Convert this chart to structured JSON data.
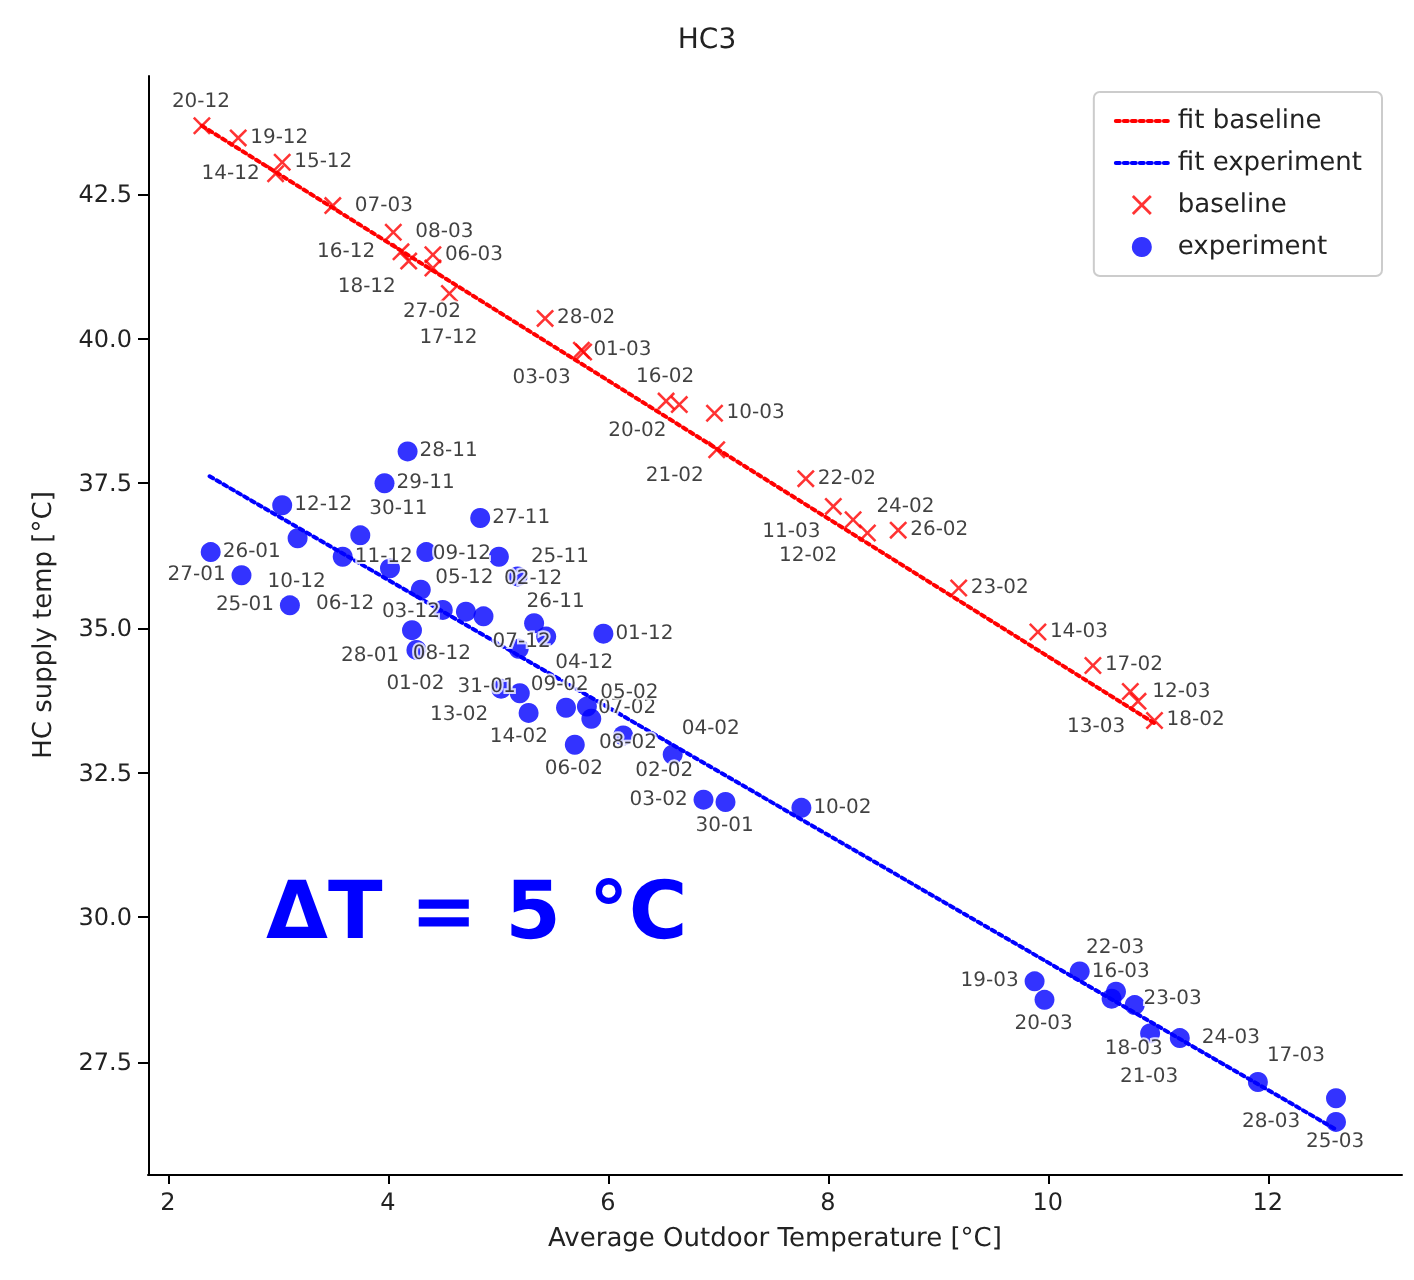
{
  "chart_data": {
    "type": "scatter",
    "title": "HC3",
    "xlabel": "Average Outdoor Temperature [°C]",
    "ylabel": "HC supply temp [°C]",
    "xlim": [
      1.82,
      13.22
    ],
    "ylim": [
      25.56,
      44.54
    ],
    "xticks": [
      2,
      4,
      6,
      8,
      10,
      12
    ],
    "yticks": [
      27.5,
      {
        "value": 30,
        "label": "30.0"
      },
      32.5,
      {
        "value": 35,
        "label": "35.0"
      },
      37.5,
      {
        "value": 40,
        "label": "40.0"
      },
      42.5
    ],
    "grid": false,
    "legend": "top right",
    "annotations": [
      "ΔT = 5 °C"
    ],
    "series": [
      {
        "name": "fit baseline",
        "type": "line",
        "color": "#ff0000",
        "line_style": "dotted",
        "marker": "none",
        "x": [
          2.31,
          10.98
        ],
        "values": [
          43.68,
          33.34
        ]
      },
      {
        "name": "fit experiment",
        "type": "line",
        "color": "#0000ff",
        "line_style": "dotted",
        "marker": "none",
        "x": [
          2.38,
          12.62
        ],
        "values": [
          37.62,
          26.33
        ]
      },
      {
        "name": "baseline",
        "type": "scatter",
        "color": "#ff0000",
        "marker": "cross",
        "x": [
          2.31,
          2.64,
          3.04,
          2.98,
          3.5,
          4.05,
          4.12,
          4.41,
          4.19,
          4.41,
          4.56,
          5.43,
          5.76,
          5.78,
          6.53,
          6.65,
          6.97,
          6.99,
          7.8,
          8.05,
          8.23,
          8.36,
          8.64,
          9.19,
          9.91,
          10.41,
          10.75,
          10.82,
          10.97
        ],
        "values": [
          43.68,
          43.47,
          43.05,
          42.85,
          42.3,
          41.84,
          41.5,
          41.45,
          41.34,
          41.22,
          40.78,
          40.35,
          39.8,
          39.77,
          38.92,
          38.86,
          38.71,
          38.08,
          37.58,
          37.1,
          36.87,
          36.64,
          36.69,
          35.69,
          34.93,
          34.35,
          33.9,
          33.73,
          33.4
        ],
        "value_labels": [
          "20-12",
          "19-12",
          "15-12",
          "14-12",
          "07-03",
          "08-03",
          "16-12",
          "06-03",
          "18-12",
          "27-02",
          "17-12",
          "28-02",
          "01-03",
          "03-03",
          "16-02",
          "20-02",
          "10-03",
          "21-02",
          "22-02",
          "11-03",
          "12-02",
          "24-02",
          "26-02",
          "23-02",
          "14-03",
          "17-02",
          "12-03",
          "13-03",
          "18-02"
        ]
      },
      {
        "name": "experiment",
        "type": "scatter",
        "color": "#0000ff",
        "marker": "circle",
        "x": [
          4.18,
          3.97,
          3.04,
          4.84,
          2.39,
          3.18,
          3.75,
          3.59,
          4.02,
          4.35,
          5.01,
          2.67,
          5.18,
          3.11,
          4.3,
          4.5,
          4.71,
          4.87,
          4.22,
          4.26,
          5.33,
          5.44,
          5.19,
          5.96,
          5.03,
          5.2,
          5.28,
          5.62,
          5.81,
          5.85,
          5.7,
          6.14,
          6.59,
          6.87,
          7.07,
          7.76,
          9.88,
          9.97,
          10.29,
          10.62,
          10.58,
          10.79,
          10.93,
          11.2,
          11.91,
          12.62,
          12.62
        ],
        "values": [
          38.05,
          37.5,
          37.12,
          36.9,
          36.31,
          36.55,
          36.6,
          36.23,
          36.03,
          36.31,
          36.23,
          35.91,
          35.89,
          35.39,
          35.66,
          35.31,
          35.28,
          35.2,
          34.96,
          34.62,
          35.08,
          34.85,
          34.64,
          34.9,
          33.95,
          33.87,
          33.53,
          33.62,
          33.64,
          33.43,
          32.98,
          33.14,
          32.81,
          32.03,
          31.99,
          31.89,
          28.89,
          28.57,
          29.06,
          28.71,
          28.59,
          28.48,
          27.99,
          27.91,
          27.15,
          26.87,
          26.46
        ],
        "value_labels": [
          "28-11",
          "29-11",
          "12-12",
          "27-11",
          "26-01",
          "10-12",
          "30-11",
          "11-12",
          "06-12",
          "05-12",
          "25-11",
          "27-01",
          "26-11",
          "25-01",
          "09-12",
          "08-12",
          "03-12",
          "07-12",
          "28-01",
          "01-02",
          "02-12",
          "04-12",
          "09-02",
          "01-12",
          "13-02",
          "14-02",
          "31-01",
          "07-02",
          "08-02",
          "05-02",
          "06-02",
          "02-02",
          "04-02",
          "03-02",
          "30-01",
          "10-02",
          "19-03",
          "20-03",
          "16-03",
          "22-03",
          "23-03",
          "18-03",
          "21-03",
          "24-03",
          "17-03",
          "25-03",
          "28-03"
        ]
      }
    ]
  }
}
